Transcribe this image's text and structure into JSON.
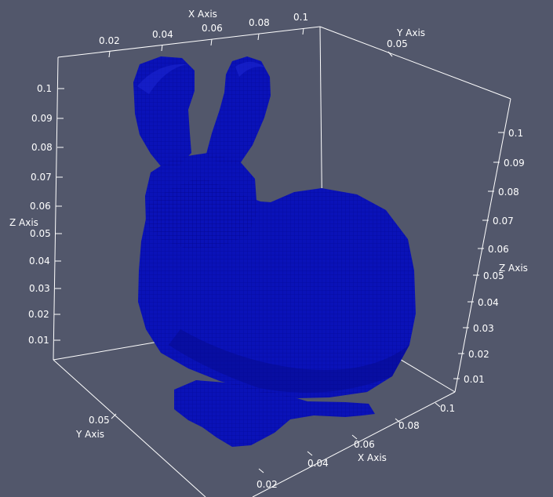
{
  "scene": {
    "background_color": "#52576b",
    "axis_color": "#ffffff",
    "object": {
      "name": "voxelized-bunny",
      "color": "#0a12b8"
    }
  },
  "axes": {
    "x_top": {
      "title": "X Axis",
      "ticks": [
        "0.02",
        "0.04",
        "0.06",
        "0.08",
        "0.1"
      ]
    },
    "y_top": {
      "title": "Y Axis",
      "ticks": [
        "0.05"
      ]
    },
    "z_left": {
      "title": "Z Axis",
      "ticks": [
        "0.1",
        "0.09",
        "0.08",
        "0.07",
        "0.06",
        "0.05",
        "0.04",
        "0.03",
        "0.02",
        "0.01"
      ]
    },
    "z_right": {
      "title": "Z Axis",
      "ticks": [
        "0.1",
        "0.09",
        "0.08",
        "0.07",
        "0.06",
        "0.05",
        "0.04",
        "0.03",
        "0.02",
        "0.01"
      ]
    },
    "x_bottom": {
      "title": "X Axis",
      "ticks": [
        "0.02",
        "0.04",
        "0.06",
        "0.08",
        "0.1"
      ]
    },
    "y_bottom": {
      "title": "Y Axis",
      "ticks": [
        "0.05"
      ]
    }
  }
}
